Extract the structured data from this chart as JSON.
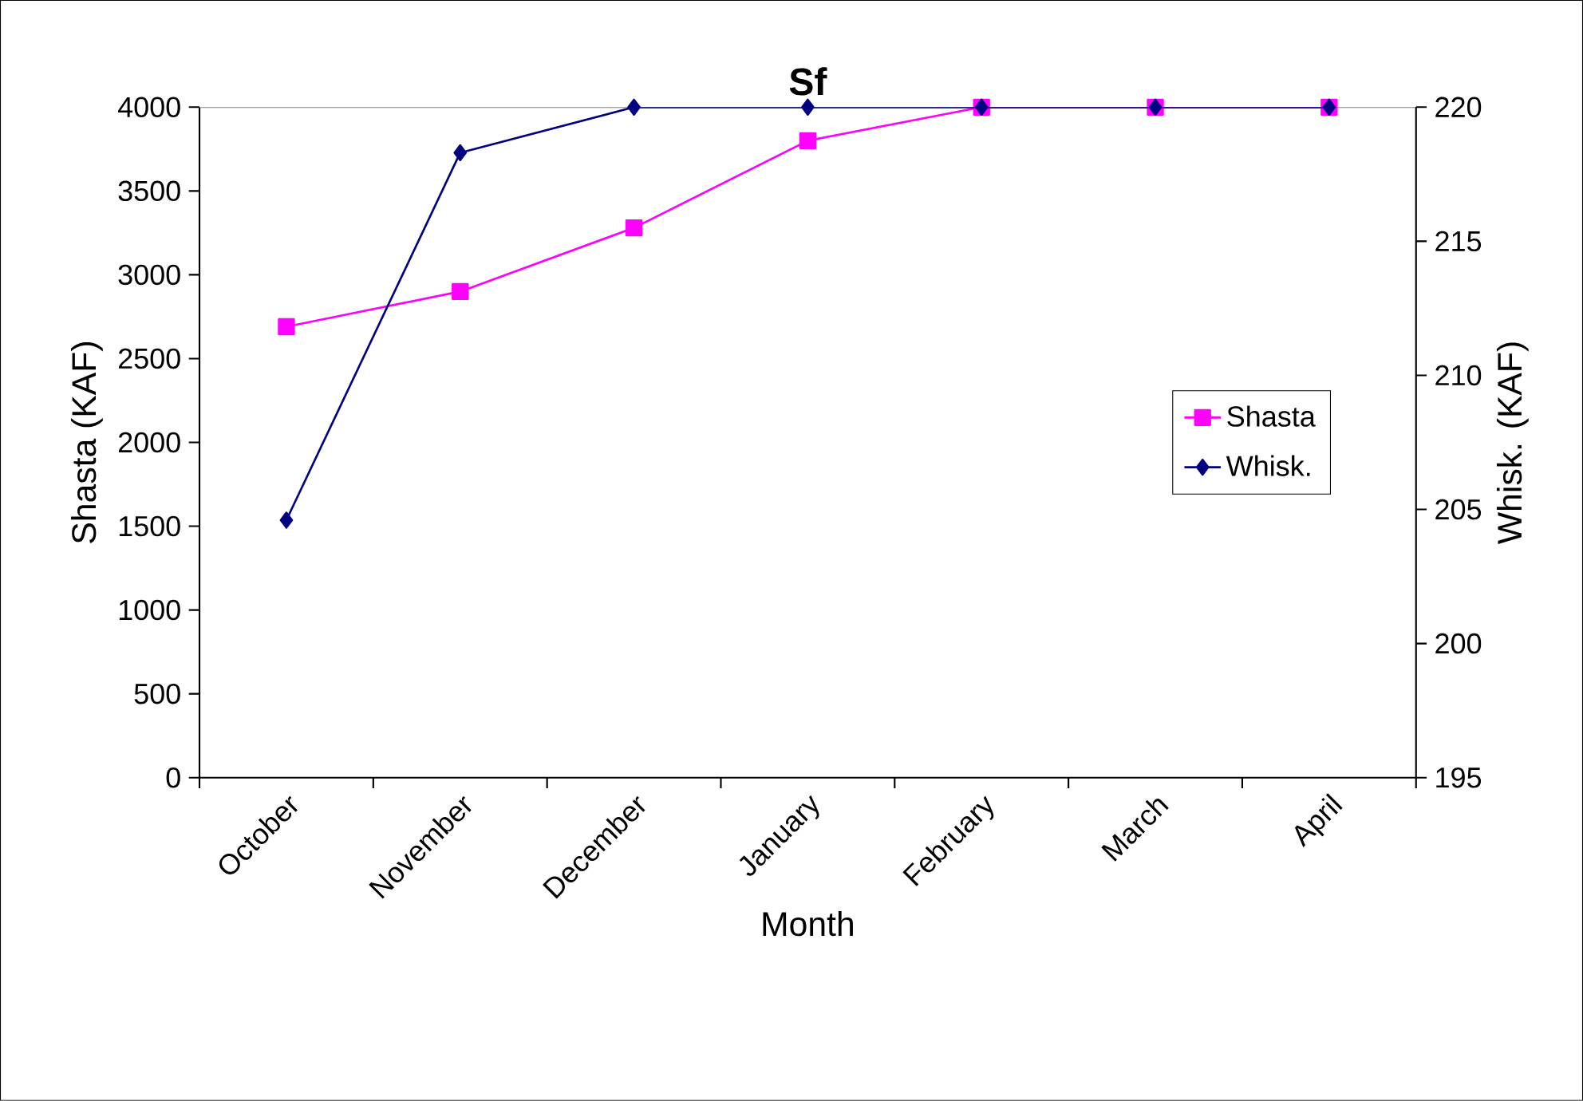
{
  "chart_data": {
    "type": "line",
    "title": "Sf",
    "xlabel": "Month",
    "ylabel": "Shasta (KAF)",
    "y2label": "Whisk. (KAF)",
    "categories": [
      "October",
      "November",
      "December",
      "January",
      "February",
      "March",
      "April"
    ],
    "series": [
      {
        "name": "Shasta",
        "color": "#ff00ff",
        "marker": "square",
        "values": [
          2690,
          2900,
          3280,
          3800,
          4000,
          4000,
          4000
        ]
      },
      {
        "name": "Whisk.",
        "color": "#000080",
        "marker": "diamond",
        "axis": "y2",
        "values": [
          204.6,
          218.3,
          220,
          220,
          220,
          220,
          220
        ]
      }
    ],
    "ylim": [
      0,
      4000
    ],
    "yticks": [
      0,
      500,
      1000,
      1500,
      2000,
      2500,
      3000,
      3500,
      4000
    ],
    "y2lim": [
      195,
      220
    ],
    "y2ticks": [
      195,
      200,
      205,
      210,
      215,
      220
    ],
    "grid": false,
    "legend": "right"
  }
}
